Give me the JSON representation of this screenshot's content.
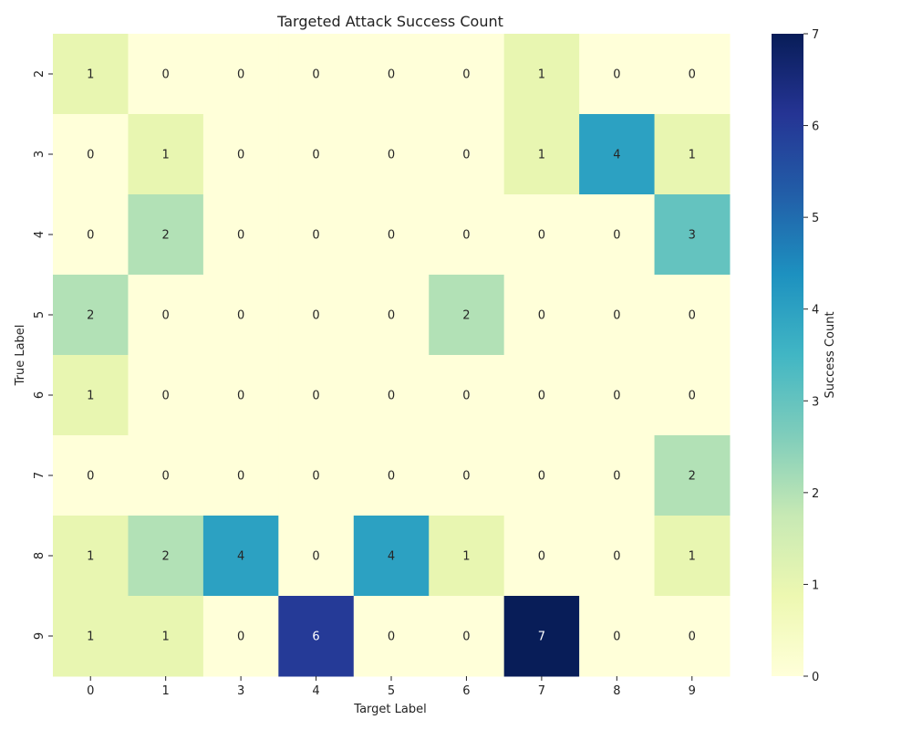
{
  "chart_data": {
    "type": "heatmap",
    "title": "Targeted Attack Success Count",
    "xlabel": "Target Label",
    "ylabel": "True Label",
    "x_categories": [
      "0",
      "1",
      "3",
      "4",
      "5",
      "6",
      "7",
      "8",
      "9"
    ],
    "y_categories": [
      "2",
      "3",
      "4",
      "5",
      "6",
      "7",
      "8",
      "9"
    ],
    "values": [
      [
        1,
        0,
        0,
        0,
        0,
        0,
        1,
        0,
        0
      ],
      [
        0,
        1,
        0,
        0,
        0,
        0,
        1,
        4,
        1
      ],
      [
        0,
        2,
        0,
        0,
        0,
        0,
        0,
        0,
        3
      ],
      [
        2,
        0,
        0,
        0,
        0,
        2,
        0,
        0,
        0
      ],
      [
        1,
        0,
        0,
        0,
        0,
        0,
        0,
        0,
        0
      ],
      [
        0,
        0,
        0,
        0,
        0,
        0,
        0,
        0,
        2
      ],
      [
        1,
        2,
        4,
        0,
        4,
        1,
        0,
        0,
        1
      ],
      [
        1,
        1,
        0,
        6,
        0,
        0,
        7,
        0,
        0
      ]
    ],
    "colorbar": {
      "label": "Success Count",
      "range": [
        0,
        7
      ],
      "ticks": [
        0,
        1,
        2,
        3,
        4,
        5,
        6,
        7
      ]
    },
    "colormap": "YlGnBu",
    "colormap_stops": [
      "#ffffd9",
      "#edf8b1",
      "#c7e9b4",
      "#7fcdbb",
      "#41b6c4",
      "#1d91c0",
      "#225ea8",
      "#253494",
      "#081d58"
    ],
    "annotation_colors": {
      "dark": "#262626",
      "light": "#ffffff"
    }
  }
}
